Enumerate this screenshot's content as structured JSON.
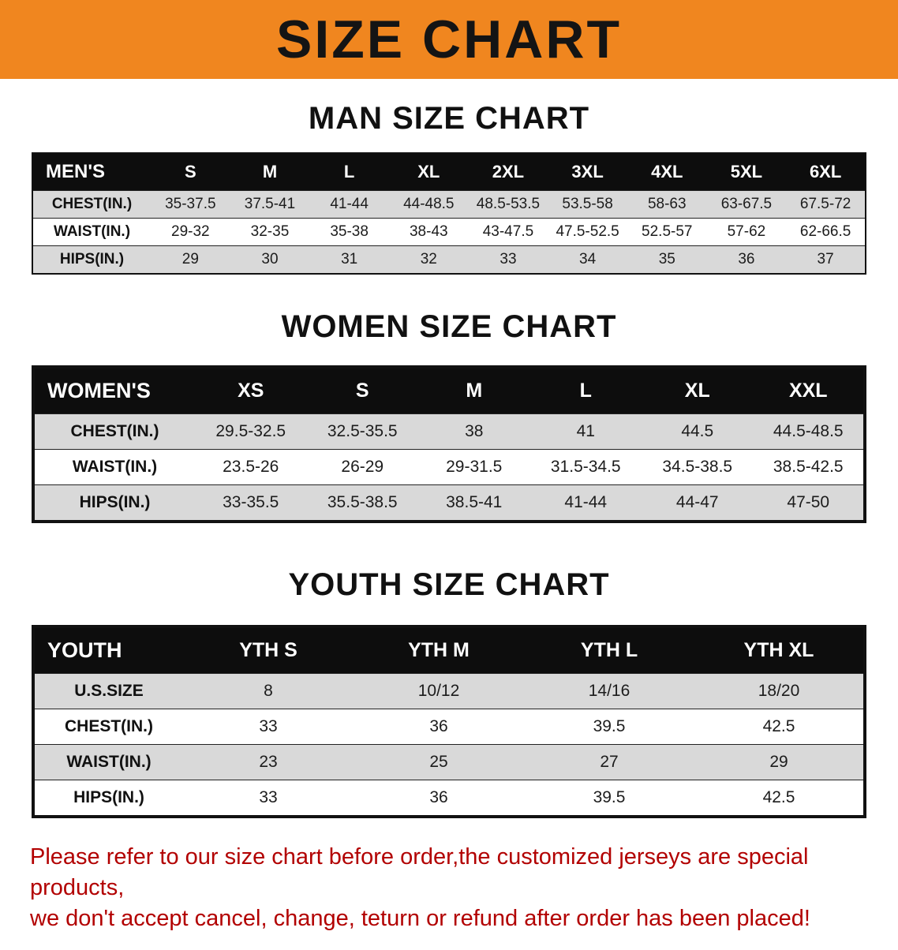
{
  "banner": {
    "title": "SIZE CHART"
  },
  "colors": {
    "banner_bg": "#f0861f",
    "table_header_bg": "#0d0d0d",
    "row_alt_bg": "#d9d9d9",
    "footer_text": "#b20000"
  },
  "sections": [
    {
      "heading": "MAN SIZE CHART",
      "header": [
        "MEN'S",
        "S",
        "M",
        "L",
        "XL",
        "2XL",
        "3XL",
        "4XL",
        "5XL",
        "6XL"
      ],
      "rows": [
        [
          "CHEST(IN.)",
          "35-37.5",
          "37.5-41",
          "41-44",
          "44-48.5",
          "48.5-53.5",
          "53.5-58",
          "58-63",
          "63-67.5",
          "67.5-72"
        ],
        [
          "WAIST(IN.)",
          "29-32",
          "32-35",
          "35-38",
          "38-43",
          "43-47.5",
          "47.5-52.5",
          "52.5-57",
          "57-62",
          "62-66.5"
        ],
        [
          "HIPS(IN.)",
          "29",
          "30",
          "31",
          "32",
          "33",
          "34",
          "35",
          "36",
          "37"
        ]
      ]
    },
    {
      "heading": "WOMEN SIZE CHART",
      "header": [
        "WOMEN'S",
        "XS",
        "S",
        "M",
        "L",
        "XL",
        "XXL"
      ],
      "rows": [
        [
          "CHEST(IN.)",
          "29.5-32.5",
          "32.5-35.5",
          "38",
          "41",
          "44.5",
          "44.5-48.5"
        ],
        [
          "WAIST(IN.)",
          "23.5-26",
          "26-29",
          "29-31.5",
          "31.5-34.5",
          "34.5-38.5",
          "38.5-42.5"
        ],
        [
          "HIPS(IN.)",
          "33-35.5",
          "35.5-38.5",
          "38.5-41",
          "41-44",
          "44-47",
          "47-50"
        ]
      ]
    },
    {
      "heading": "YOUTH SIZE CHART",
      "header": [
        "YOUTH",
        "YTH S",
        "YTH M",
        "YTH L",
        "YTH XL"
      ],
      "rows": [
        [
          "U.S.SIZE",
          "8",
          "10/12",
          "14/16",
          "18/20"
        ],
        [
          "CHEST(IN.)",
          "33",
          "36",
          "39.5",
          "42.5"
        ],
        [
          "WAIST(IN.)",
          "23",
          "25",
          "27",
          "29"
        ],
        [
          "HIPS(IN.)",
          "33",
          "36",
          "39.5",
          "42.5"
        ]
      ]
    }
  ],
  "footer": {
    "line1": "Please refer to our size chart before order,the customized jerseys are special products,",
    "line2": "we don't accept cancel, change, teturn or refund after order has been placed!"
  }
}
